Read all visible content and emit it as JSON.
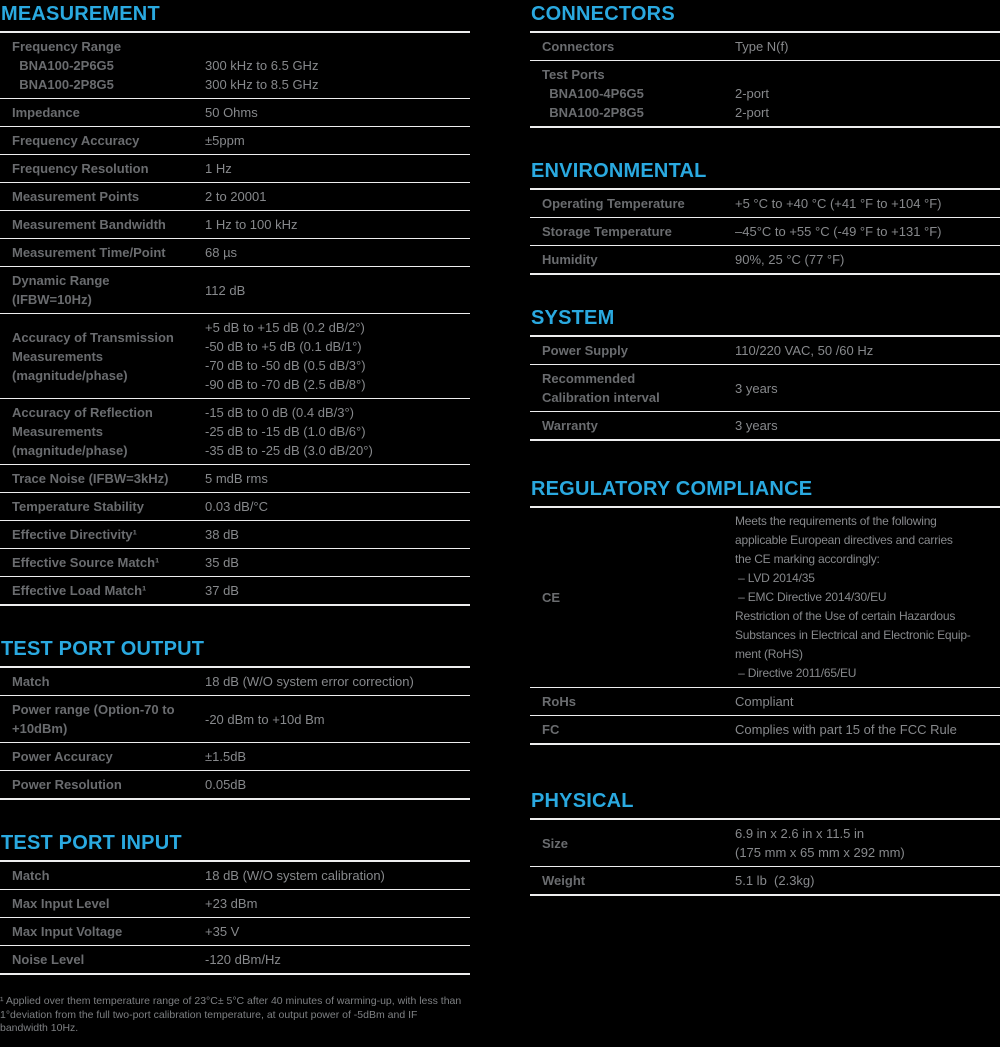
{
  "colors": {
    "background": "#000000",
    "accent": "#2AA9E0",
    "label_text": "#6A6C6F",
    "value_text": "#87898C",
    "divider": "#EDEDEE"
  },
  "sections": {
    "measurement": {
      "title": "MEASUREMENT",
      "rows": [
        {
          "label": "Frequency Range\n  BNA100-2P6G5\n  BNA100-2P8G5",
          "value": "\n300 kHz to 6.5 GHz\n300 kHz to 8.5 GHz"
        },
        {
          "label": "Impedance",
          "value": "50 Ohms"
        },
        {
          "label": "Frequency Accuracy",
          "value": "±5ppm"
        },
        {
          "label": "Frequency Resolution",
          "value": "1 Hz"
        },
        {
          "label": "Measurement Points",
          "value": "2 to 20001"
        },
        {
          "label": "Measurement Bandwidth",
          "value": "1 Hz to 100 kHz"
        },
        {
          "label": "Measurement Time/Point",
          "value": "68 µs"
        },
        {
          "label": "Dynamic Range\n(IFBW=10Hz)",
          "value": "112 dB"
        },
        {
          "label": "Accuracy of Transmission\nMeasurements\n(magnitude/phase)",
          "value": "+5 dB to +15 dB (0.2 dB/2°)\n-50 dB to +5 dB (0.1 dB/1°)\n-70 dB to -50 dB (0.5 dB/3°)\n-90 dB to -70 dB (2.5 dB/8°)"
        },
        {
          "label": "Accuracy of Reflection\nMeasurements\n(magnitude/phase)",
          "value": "-15 dB to 0 dB (0.4 dB/3°)\n-25 dB to -15 dB (1.0 dB/6°)\n-35 dB to -25 dB (3.0 dB/20°)"
        },
        {
          "label": "Trace Noise (IFBW=3kHz)",
          "value": "5 mdB rms"
        },
        {
          "label": "Temperature Stability",
          "value": "0.03 dB/°C"
        },
        {
          "label": "Effective Directivity¹",
          "value": "38 dB"
        },
        {
          "label": "Effective Source Match¹",
          "value": "35 dB"
        },
        {
          "label": "Effective Load Match¹",
          "value": "37 dB"
        }
      ]
    },
    "test_port_output": {
      "title": "TEST PORT OUTPUT",
      "rows": [
        {
          "label": "Match",
          "value": "18 dB (W/O system error correction)"
        },
        {
          "label": "Power range (Option-70 to\n+10dBm)",
          "value": "-20 dBm to +10d Bm"
        },
        {
          "label": "Power Accuracy",
          "value": "±1.5dB"
        },
        {
          "label": "Power Resolution",
          "value": "0.05dB"
        }
      ]
    },
    "test_port_input": {
      "title": "TEST PORT INPUT",
      "rows": [
        {
          "label": "Match",
          "value": "18 dB (W/O system calibration)"
        },
        {
          "label": "Max Input Level",
          "value": "+23 dBm"
        },
        {
          "label": "Max Input Voltage",
          "value": "+35 V"
        },
        {
          "label": "Noise Level",
          "value": "-120 dBm/Hz"
        }
      ]
    },
    "connectors": {
      "title": "CONNECTORS",
      "rows": [
        {
          "label": "Connectors",
          "value": "Type N(f)"
        },
        {
          "label": "Test Ports\n  BNA100-4P6G5\n  BNA100-2P8G5",
          "value": "\n2-port\n2-port"
        }
      ]
    },
    "environmental": {
      "title": "ENVIRONMENTAL",
      "rows": [
        {
          "label": "Operating Temperature",
          "value": "+5 °C to +40 °C (+41 °F to +104 °F)"
        },
        {
          "label": "Storage Temperature",
          "value": "–45°C to +55 °C (-49 °F to +131 °F)"
        },
        {
          "label": "Humidity",
          "value": "90%, 25 °C (77 °F)"
        }
      ]
    },
    "system": {
      "title": "SYSTEM",
      "rows": [
        {
          "label": "Power Supply",
          "value": "110/220 VAC, 50 /60 Hz"
        },
        {
          "label": "Recommended\nCalibration interval",
          "value": "3 years"
        },
        {
          "label": "Warranty",
          "value": "3 years"
        }
      ]
    },
    "regulatory": {
      "title": "REGULATORY COMPLIANCE",
      "rows": [
        {
          "label": "CE",
          "value": "Meets the requirements of the following\napplicable European directives and carries\nthe CE marking accordingly:\n – LVD 2014/35\n – EMC Directive 2014/30/EU\nRestriction of the Use of certain Hazardous\nSubstances in Electrical and Electronic Equip-\nment (RoHS)\n – Directive 2011/65/EU"
        },
        {
          "label": "RoHs",
          "value": "Compliant"
        },
        {
          "label": "FC",
          "value": "Complies with part 15 of the FCC Rule"
        }
      ]
    },
    "physical": {
      "title": "PHYSICAL",
      "rows": [
        {
          "label": "Size",
          "value": "6.9 in x 2.6 in x 11.5 in\n(175 mm x 65 mm x 292 mm)"
        },
        {
          "label": "Weight",
          "value": "5.1 lb  (2.3kg)"
        }
      ]
    }
  },
  "footnote": "¹ Applied over them temperature range of 23°C± 5°C after 40 minutes of warming-up, with less than 1°deviation from the full two-port calibration temperature, at output power of -5dBm and IF bandwidth 10Hz."
}
